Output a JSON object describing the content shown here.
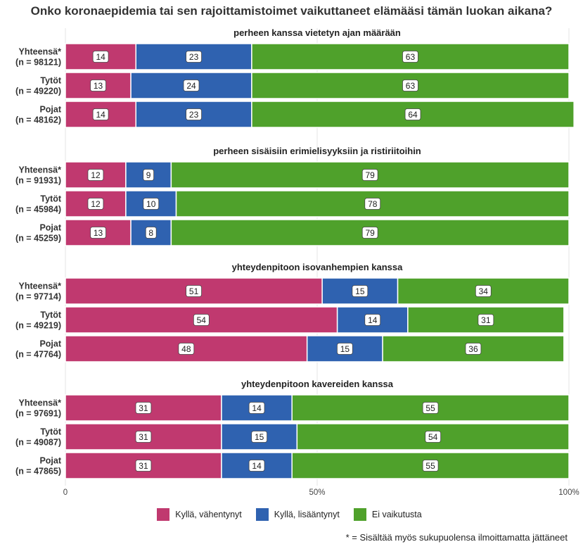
{
  "title": "Onko koronaepidemia tai sen rajoittamistoimet vaikuttaneet elämääsi tämän luokan aikana?",
  "footnote": "* = Sisältää myös sukupuolensa ilmoittamatta jättäneet",
  "colors": {
    "Kyllä, vähentynyt": "#c0396f",
    "Kyllä, lisääntynyt": "#2f62b0",
    "Ei vaikutusta": "#4fa12b"
  },
  "chart_data": {
    "type": "bar",
    "orientation": "horizontal",
    "stacked": true,
    "xlim": [
      0,
      100
    ],
    "x_ticks": [
      "0",
      "50%",
      "100%"
    ],
    "legend_position": "bottom",
    "legend": [
      "Kyllä, vähentynyt",
      "Kyllä, lisääntynyt",
      "Ei vaikutusta"
    ],
    "panels": [
      {
        "title": "perheen kanssa vietetyn ajan määrään",
        "groups": [
          {
            "label": "Yhteensä*",
            "n": "(n = 98121)",
            "values": [
              14,
              23,
              63
            ]
          },
          {
            "label": "Tytöt",
            "n": "(n = 49220)",
            "values": [
              13,
              24,
              63
            ]
          },
          {
            "label": "Pojat",
            "n": "(n = 48162)",
            "values": [
              14,
              23,
              64
            ]
          }
        ]
      },
      {
        "title": "perheen sisäisiin erimielisyyksiin ja ristiriitoihin",
        "groups": [
          {
            "label": "Yhteensä*",
            "n": "(n = 91931)",
            "values": [
              12,
              9,
              79
            ]
          },
          {
            "label": "Tytöt",
            "n": "(n = 45984)",
            "values": [
              12,
              10,
              78
            ]
          },
          {
            "label": "Pojat",
            "n": "(n = 45259)",
            "values": [
              13,
              8,
              79
            ]
          }
        ]
      },
      {
        "title": "yhteydenpitoon isovanhempien kanssa",
        "groups": [
          {
            "label": "Yhteensä*",
            "n": "(n = 97714)",
            "values": [
              51,
              15,
              34
            ]
          },
          {
            "label": "Tytöt",
            "n": "(n = 49219)",
            "values": [
              54,
              14,
              31
            ]
          },
          {
            "label": "Pojat",
            "n": "(n = 47764)",
            "values": [
              48,
              15,
              36
            ]
          }
        ]
      },
      {
        "title": "yhteydenpitoon kavereiden kanssa",
        "groups": [
          {
            "label": "Yhteensä*",
            "n": "(n = 97691)",
            "values": [
              31,
              14,
              55
            ]
          },
          {
            "label": "Tytöt",
            "n": "(n = 49087)",
            "values": [
              31,
              15,
              54
            ]
          },
          {
            "label": "Pojat",
            "n": "(n = 47865)",
            "values": [
              31,
              14,
              55
            ]
          }
        ]
      }
    ]
  }
}
